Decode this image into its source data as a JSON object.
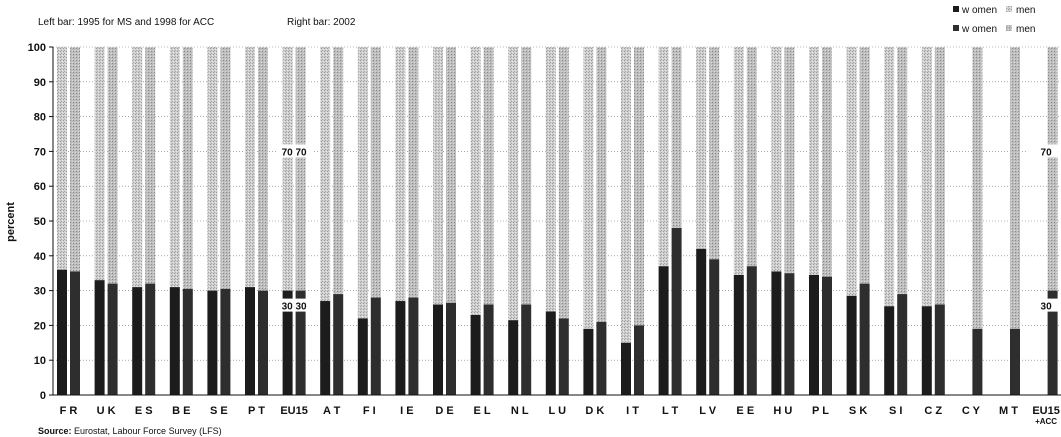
{
  "chart_data": {
    "type": "bar",
    "notes": {
      "left_bar": "Left bar: 1995 for MS and 1998 for ACC",
      "right_bar": "Right bar: 2002"
    },
    "ylabel": "percent",
    "ylim": [
      0,
      100
    ],
    "yticks": [
      "0",
      "10",
      "20",
      "30",
      "40",
      "50",
      "60",
      "70",
      "80",
      "90",
      "100"
    ],
    "stacked": true,
    "grid": "horizontal-dotted",
    "legend": [
      {
        "name": "w omen",
        "color": "#1c1c1c"
      },
      {
        "name": "men",
        "color": "#d4d4d4"
      },
      {
        "name": "w omen",
        "color": "#2e2e2e"
      },
      {
        "name": "men",
        "color": "#c2c2c2"
      }
    ],
    "categories": [
      {
        "label": "F R",
        "women": [
          36,
          35.5
        ]
      },
      {
        "label": "U K",
        "women": [
          33,
          32
        ]
      },
      {
        "label": "E S",
        "women": [
          31,
          32
        ]
      },
      {
        "label": "B E",
        "women": [
          31,
          30.5
        ]
      },
      {
        "label": "S E",
        "women": [
          30,
          30.5
        ]
      },
      {
        "label": "P T",
        "women": [
          31,
          30
        ]
      },
      {
        "label": "EU15",
        "women": [
          30,
          30
        ],
        "annotation_top": "70 70",
        "annotation_bottom": "30 30"
      },
      {
        "label": "A T",
        "women": [
          27,
          29
        ]
      },
      {
        "label": "F I",
        "women": [
          22,
          28
        ]
      },
      {
        "label": "I E",
        "women": [
          27,
          28
        ]
      },
      {
        "label": "D E",
        "women": [
          26,
          26.5
        ]
      },
      {
        "label": "E L",
        "women": [
          23,
          26
        ]
      },
      {
        "label": "N L",
        "women": [
          21.5,
          26
        ]
      },
      {
        "label": "L U",
        "women": [
          24,
          22
        ]
      },
      {
        "label": "D K",
        "women": [
          19,
          21
        ]
      },
      {
        "label": "I T",
        "women": [
          15,
          20
        ]
      },
      {
        "label": "L T",
        "women": [
          37,
          48
        ]
      },
      {
        "label": "L V",
        "women": [
          42,
          39
        ]
      },
      {
        "label": "E E",
        "women": [
          34.5,
          37
        ]
      },
      {
        "label": "H U",
        "women": [
          35.5,
          35
        ]
      },
      {
        "label": "P L",
        "women": [
          34.5,
          34
        ]
      },
      {
        "label": "S K",
        "women": [
          28.5,
          32
        ]
      },
      {
        "label": "S I",
        "women": [
          25.5,
          29
        ]
      },
      {
        "label": "C Z",
        "women": [
          25.5,
          26
        ]
      },
      {
        "label": "C Y",
        "women": [
          null,
          19
        ]
      },
      {
        "label": "M T",
        "women": [
          null,
          19
        ]
      },
      {
        "label": "EU15",
        "label2": "+ACC",
        "women": [
          null,
          30
        ],
        "annotation_top": "70",
        "annotation_bottom": "30"
      }
    ],
    "source_label": "Source:",
    "source_text": " Eurostat, Labour Force Survey (LFS)"
  }
}
